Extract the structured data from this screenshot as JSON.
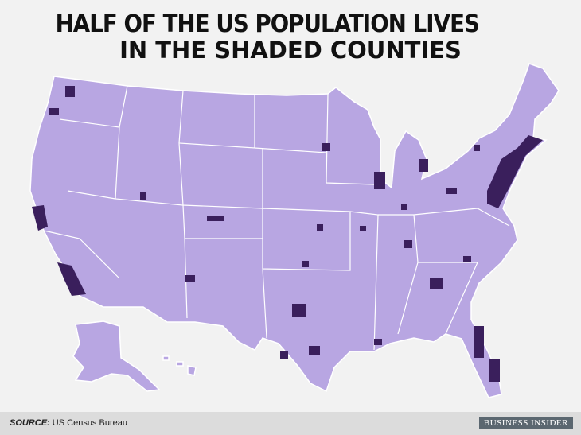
{
  "title": [
    "HALF OF THE US POPULATION LIVES",
    "IN THE SHADED COUNTIES"
  ],
  "source": {
    "label": "SOURCE:",
    "text": "US Census Bureau"
  },
  "logo": "BUSINESS INSIDER"
}
